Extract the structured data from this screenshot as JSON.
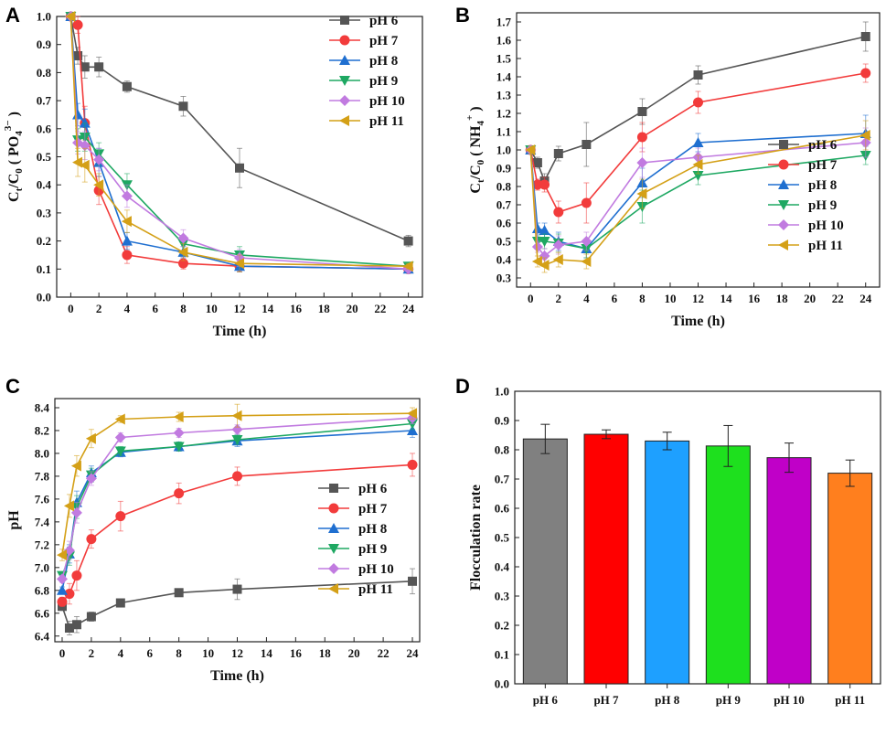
{
  "chart_data": [
    {
      "panel": "A",
      "type": "line",
      "xlabel": "Time (h)",
      "ylabel_main": "C",
      "ylabel_parts": [
        "t",
        "/C",
        "0",
        " ( PO",
        "4",
        "3−",
        " )"
      ],
      "xlim": [
        -1,
        25
      ],
      "ylim": [
        0,
        1.0
      ],
      "xticks": [
        0,
        2,
        4,
        6,
        8,
        10,
        12,
        14,
        16,
        18,
        20,
        22,
        24
      ],
      "yticks": [
        0.0,
        0.1,
        0.2,
        0.3,
        0.4,
        0.5,
        0.6,
        0.7,
        0.8,
        0.9,
        1.0
      ],
      "ytick_decimals": 1,
      "legend": "top-right",
      "series": [
        {
          "name": "pH 6",
          "color": "#555555",
          "marker": "square",
          "x": [
            0,
            0.5,
            1,
            2,
            4,
            8,
            12,
            24
          ],
          "y": [
            1.0,
            0.86,
            0.82,
            0.82,
            0.75,
            0.68,
            0.46,
            0.2
          ],
          "err": [
            0.01,
            0.03,
            0.04,
            0.035,
            0.02,
            0.035,
            0.07,
            0.02
          ]
        },
        {
          "name": "pH 7",
          "color": "#f23b3b",
          "marker": "circle",
          "x": [
            0,
            0.5,
            1,
            2,
            4,
            8,
            12,
            24
          ],
          "y": [
            1.0,
            0.97,
            0.62,
            0.38,
            0.15,
            0.12,
            0.11,
            0.1
          ],
          "err": [
            0.01,
            0.03,
            0.06,
            0.05,
            0.03,
            0.02,
            0.02,
            0.01
          ]
        },
        {
          "name": "pH 8",
          "color": "#1f6fd0",
          "marker": "triangle-up",
          "x": [
            0,
            0.5,
            1,
            2,
            4,
            8,
            12,
            24
          ],
          "y": [
            1.0,
            0.65,
            0.62,
            0.48,
            0.2,
            0.16,
            0.11,
            0.1
          ],
          "err": [
            0.01,
            0.04,
            0.05,
            0.05,
            0.03,
            0.02,
            0.02,
            0.01
          ]
        },
        {
          "name": "pH 9",
          "color": "#1ea862",
          "marker": "triangle-down",
          "x": [
            0,
            0.5,
            1,
            2,
            4,
            8,
            12,
            24
          ],
          "y": [
            1.0,
            0.56,
            0.57,
            0.51,
            0.4,
            0.19,
            0.15,
            0.11
          ],
          "err": [
            0.01,
            0.04,
            0.05,
            0.04,
            0.04,
            0.03,
            0.03,
            0.01
          ]
        },
        {
          "name": "pH 10",
          "color": "#c17be0",
          "marker": "diamond",
          "x": [
            0,
            0.5,
            1,
            2,
            4,
            8,
            12,
            24
          ],
          "y": [
            1.0,
            0.55,
            0.54,
            0.49,
            0.36,
            0.21,
            0.14,
            0.1
          ],
          "err": [
            0.01,
            0.04,
            0.05,
            0.04,
            0.04,
            0.03,
            0.03,
            0.01
          ]
        },
        {
          "name": "pH 11",
          "color": "#d4a017",
          "marker": "triangle-left",
          "x": [
            0,
            0.5,
            1,
            2,
            4,
            8,
            12,
            24
          ],
          "y": [
            1.0,
            0.48,
            0.47,
            0.4,
            0.27,
            0.16,
            0.12,
            0.11
          ],
          "err": [
            0.01,
            0.05,
            0.06,
            0.04,
            0.04,
            0.03,
            0.03,
            0.01
          ]
        }
      ]
    },
    {
      "panel": "B",
      "type": "line",
      "xlabel": "Time (h)",
      "ylabel_main": "C",
      "ylabel_parts": [
        "t",
        "/C",
        "0",
        " ( NH",
        "4",
        "+",
        " )"
      ],
      "xlim": [
        -1,
        25
      ],
      "ylim": [
        0.25,
        1.75
      ],
      "xticks": [
        0,
        2,
        4,
        6,
        8,
        10,
        12,
        14,
        16,
        18,
        20,
        22,
        24
      ],
      "yticks": [
        0.3,
        0.4,
        0.5,
        0.6,
        0.7,
        0.8,
        0.9,
        1.0,
        1.1,
        1.2,
        1.3,
        1.4,
        1.5,
        1.6,
        1.7
      ],
      "ytick_decimals": 1,
      "legend": "center-right",
      "series": [
        {
          "name": "pH 6",
          "color": "#555555",
          "marker": "square",
          "x": [
            0,
            0.5,
            1,
            2,
            4,
            8,
            12,
            24
          ],
          "y": [
            1.0,
            0.93,
            0.83,
            0.98,
            1.03,
            1.21,
            1.41,
            1.62
          ],
          "err": [
            0.02,
            0.03,
            0.04,
            0.04,
            0.12,
            0.07,
            0.05,
            0.08
          ]
        },
        {
          "name": "pH 7",
          "color": "#f23b3b",
          "marker": "circle",
          "x": [
            0,
            0.5,
            1,
            2,
            4,
            8,
            12,
            24
          ],
          "y": [
            1.0,
            0.81,
            0.81,
            0.66,
            0.71,
            1.07,
            1.26,
            1.42
          ],
          "err": [
            0.02,
            0.03,
            0.04,
            0.06,
            0.11,
            0.08,
            0.06,
            0.05
          ]
        },
        {
          "name": "pH 8",
          "color": "#1f6fd0",
          "marker": "triangle-up",
          "x": [
            0,
            0.5,
            1,
            2,
            4,
            8,
            12,
            24
          ],
          "y": [
            1.0,
            0.57,
            0.56,
            0.5,
            0.46,
            0.82,
            1.04,
            1.09
          ],
          "err": [
            0.02,
            0.03,
            0.04,
            0.05,
            0.05,
            0.08,
            0.05,
            0.1
          ]
        },
        {
          "name": "pH 9",
          "color": "#1ea862",
          "marker": "triangle-down",
          "x": [
            0,
            0.5,
            1,
            2,
            4,
            8,
            12,
            24
          ],
          "y": [
            1.0,
            0.5,
            0.5,
            0.49,
            0.46,
            0.69,
            0.86,
            0.97
          ],
          "err": [
            0.02,
            0.03,
            0.04,
            0.05,
            0.05,
            0.09,
            0.05,
            0.05
          ]
        },
        {
          "name": "pH 10",
          "color": "#c17be0",
          "marker": "diamond",
          "x": [
            0,
            0.5,
            1,
            2,
            4,
            8,
            12,
            24
          ],
          "y": [
            1.0,
            0.47,
            0.42,
            0.48,
            0.5,
            0.93,
            0.96,
            1.04
          ],
          "err": [
            0.02,
            0.03,
            0.04,
            0.05,
            0.05,
            0.08,
            0.05,
            0.08
          ]
        },
        {
          "name": "pH 11",
          "color": "#d4a017",
          "marker": "triangle-left",
          "x": [
            0,
            0.5,
            1,
            2,
            4,
            8,
            12,
            24
          ],
          "y": [
            1.0,
            0.39,
            0.37,
            0.4,
            0.39,
            0.76,
            0.92,
            1.08
          ],
          "err": [
            0.02,
            0.03,
            0.04,
            0.04,
            0.04,
            0.08,
            0.05,
            0.08
          ]
        }
      ]
    },
    {
      "panel": "C",
      "type": "line",
      "xlabel": "Time (h)",
      "ylabel_main": "pH",
      "ylabel_parts": [],
      "xlim": [
        -0.5,
        24.5
      ],
      "ylim": [
        6.35,
        8.48
      ],
      "xticks": [
        0,
        2,
        4,
        6,
        8,
        10,
        12,
        14,
        16,
        18,
        20,
        22,
        24
      ],
      "yticks": [
        6.4,
        6.6,
        6.8,
        7.0,
        7.2,
        7.4,
        7.6,
        7.8,
        8.0,
        8.2,
        8.4
      ],
      "ytick_decimals": 1,
      "legend": "bottom-right",
      "series": [
        {
          "name": "pH 6",
          "color": "#555555",
          "marker": "square",
          "x": [
            0,
            0.5,
            1,
            2,
            4,
            8,
            12,
            24
          ],
          "y": [
            6.66,
            6.47,
            6.5,
            6.57,
            6.69,
            6.78,
            6.81,
            6.88
          ],
          "err": [
            0.03,
            0.06,
            0.07,
            0.04,
            0.02,
            0.02,
            0.09,
            0.11
          ]
        },
        {
          "name": "pH 7",
          "color": "#f23b3b",
          "marker": "circle",
          "x": [
            0,
            0.5,
            1,
            2,
            4,
            8,
            12,
            24
          ],
          "y": [
            6.7,
            6.77,
            6.93,
            7.25,
            7.45,
            7.65,
            7.8,
            7.9
          ],
          "err": [
            0.04,
            0.09,
            0.13,
            0.08,
            0.13,
            0.09,
            0.08,
            0.1
          ]
        },
        {
          "name": "pH 8",
          "color": "#1f6fd0",
          "marker": "triangle-up",
          "x": [
            0,
            0.5,
            1,
            2,
            4,
            8,
            12,
            24
          ],
          "y": [
            6.8,
            7.12,
            7.57,
            7.83,
            8.01,
            8.06,
            8.11,
            8.2
          ],
          "err": [
            0.03,
            0.08,
            0.1,
            0.06,
            0.04,
            0.04,
            0.05,
            0.06
          ]
        },
        {
          "name": "pH 9",
          "color": "#1ea862",
          "marker": "triangle-down",
          "x": [
            0,
            0.5,
            1,
            2,
            4,
            8,
            12,
            24
          ],
          "y": [
            6.93,
            7.1,
            7.53,
            7.81,
            8.02,
            8.06,
            8.12,
            8.26
          ],
          "err": [
            0.03,
            0.08,
            0.1,
            0.06,
            0.04,
            0.04,
            0.04,
            0.05
          ]
        },
        {
          "name": "pH 10",
          "color": "#c17be0",
          "marker": "diamond",
          "x": [
            0,
            0.5,
            1,
            2,
            4,
            8,
            12,
            24
          ],
          "y": [
            6.9,
            7.15,
            7.48,
            7.78,
            8.14,
            8.18,
            8.21,
            8.31
          ],
          "err": [
            0.03,
            0.08,
            0.09,
            0.06,
            0.04,
            0.04,
            0.04,
            0.05
          ]
        },
        {
          "name": "pH 11",
          "color": "#d4a017",
          "marker": "triangle-left",
          "x": [
            0,
            0.5,
            1,
            2,
            4,
            8,
            12,
            24
          ],
          "y": [
            7.11,
            7.54,
            7.89,
            8.13,
            8.3,
            8.32,
            8.33,
            8.35
          ],
          "err": [
            0.05,
            0.1,
            0.09,
            0.08,
            0.03,
            0.04,
            0.1,
            0.05
          ]
        }
      ]
    },
    {
      "panel": "D",
      "type": "bar",
      "xlabel": "",
      "ylabel_main": "Flocculation rate",
      "ylabel_parts": [],
      "ylim": [
        0,
        1.0
      ],
      "yticks": [
        0.0,
        0.1,
        0.2,
        0.3,
        0.4,
        0.5,
        0.6,
        0.7,
        0.8,
        0.9,
        1.0
      ],
      "ytick_decimals": 1,
      "categories": [
        "pH 6",
        "pH 7",
        "pH 8",
        "pH 9",
        "pH 10",
        "pH 11"
      ],
      "values": [
        0.837,
        0.853,
        0.83,
        0.813,
        0.773,
        0.72
      ],
      "err": [
        0.05,
        0.015,
        0.03,
        0.07,
        0.05,
        0.045
      ],
      "colors": [
        "#808080",
        "#ff0000",
        "#1ea0ff",
        "#1ee01e",
        "#c000c8",
        "#ff7f1e"
      ]
    }
  ]
}
